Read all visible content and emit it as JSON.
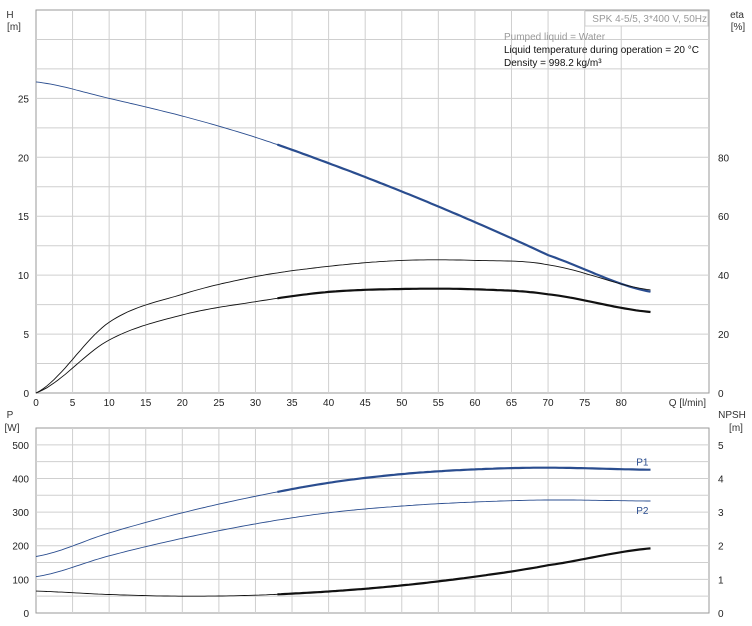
{
  "info_box": {
    "pump": "SPK 4-5/5, 3*400 V, 50Hz",
    "lines": [
      "Pumped liquid = Water",
      "Liquid temperature during operation = 20 °C",
      "Density = 998.2 kg/m³"
    ]
  },
  "colors": {
    "head_curve": "#2a4d8f",
    "eta_curve": "#111111",
    "p_curves": "#2a4d8f",
    "npsh_curve": "#111111",
    "grid": "#cfcfcf"
  },
  "chart_data": [
    {
      "type": "line",
      "panel": "upper",
      "grid": true,
      "xlabel": "Q [l/min]",
      "xlim": [
        0,
        92
      ],
      "xticks": [
        0,
        5,
        10,
        15,
        20,
        25,
        30,
        35,
        40,
        45,
        50,
        55,
        60,
        65,
        70,
        75,
        80
      ],
      "y_left": {
        "label_top": "H",
        "label_unit": "[m]",
        "ylim": [
          0,
          32.5
        ],
        "ticks": [
          0,
          5,
          10,
          15,
          20,
          25
        ]
      },
      "y_right": {
        "label_top": "eta",
        "label_unit": "[%]",
        "ylim": [
          0,
          130
        ],
        "ticks": [
          0,
          20,
          40,
          60,
          80
        ]
      },
      "series": [
        {
          "name": "",
          "axis": "left",
          "role": "head",
          "x": [
            0,
            10,
            20,
            30,
            40,
            50,
            60,
            70,
            84
          ],
          "y": [
            26.4,
            25.0,
            23.5,
            21.7,
            19.5,
            17.1,
            14.5,
            11.7,
            8.6
          ],
          "operating_range": [
            33,
            84
          ]
        },
        {
          "name": "",
          "axis": "right",
          "role": "eta_total_thin",
          "x": [
            0,
            10,
            20,
            30,
            40,
            50,
            60,
            70,
            84
          ],
          "y": [
            0,
            24,
            33.5,
            39.5,
            43,
            45,
            45,
            43.5,
            35
          ]
        },
        {
          "name": "",
          "axis": "right",
          "role": "eta_pump_bold",
          "x": [
            0,
            10,
            20,
            30,
            40,
            50,
            60,
            70,
            84
          ],
          "y": [
            0,
            18,
            26.5,
            31,
            34.3,
            35.3,
            35.2,
            33.5,
            27.5
          ],
          "operating_range": [
            33,
            84
          ]
        }
      ]
    },
    {
      "type": "line",
      "panel": "lower",
      "grid": true,
      "xlabel": "",
      "xlim": [
        0,
        92
      ],
      "y_left": {
        "label_top": "P",
        "label_unit": "[W]",
        "ylim": [
          0,
          550
        ],
        "ticks": [
          0,
          100,
          200,
          300,
          400,
          500
        ]
      },
      "y_right": {
        "label_top": "NPSH",
        "label_unit": "[m]",
        "ylim": [
          0,
          5.5
        ],
        "ticks": [
          0,
          1,
          2,
          3,
          4,
          5
        ]
      },
      "series": [
        {
          "name": "P1",
          "axis": "left",
          "x": [
            0,
            10,
            20,
            30,
            40,
            50,
            60,
            70,
            84
          ],
          "y": [
            168,
            238,
            298,
            347,
            387,
            413,
            427,
            432,
            426
          ],
          "operating_range": [
            33,
            84
          ]
        },
        {
          "name": "P2",
          "axis": "left",
          "x": [
            0,
            10,
            20,
            30,
            40,
            50,
            60,
            70,
            84
          ],
          "y": [
            108,
            170,
            222,
            265,
            298,
            318,
            330,
            336,
            333
          ]
        },
        {
          "name": "",
          "axis": "right",
          "role": "npsh",
          "x": [
            0,
            10,
            20,
            30,
            40,
            50,
            60,
            70,
            84
          ],
          "y": [
            0.65,
            0.55,
            0.5,
            0.53,
            0.64,
            0.82,
            1.08,
            1.42,
            1.92
          ],
          "operating_range": [
            33,
            84
          ]
        }
      ]
    }
  ]
}
